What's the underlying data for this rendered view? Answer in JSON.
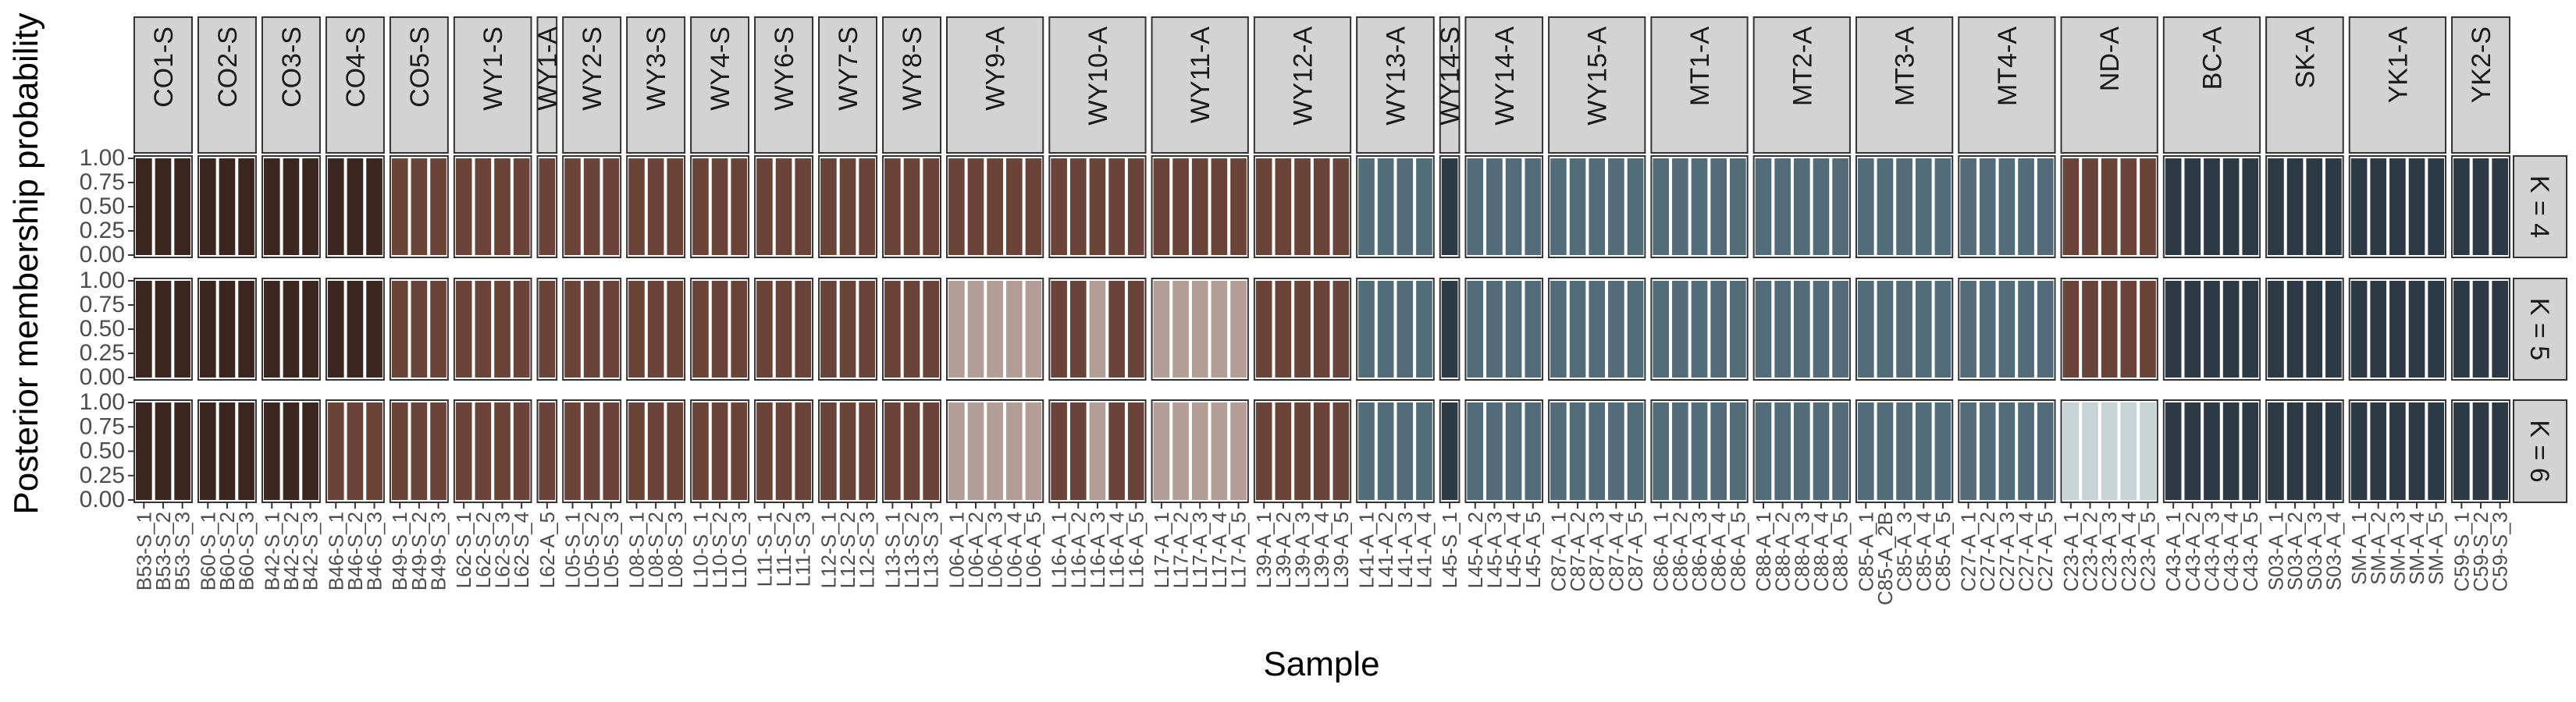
{
  "chart_data": {
    "type": "bar",
    "stacked": true,
    "ylabel": "Posterior membership probability",
    "xlabel": "Sample",
    "ylim": [
      0,
      1
    ],
    "y_ticks": [
      "0.00",
      "0.25",
      "0.50",
      "0.75",
      "1.00"
    ],
    "grid": false,
    "legend": "none",
    "palette": {
      "c1": "#3b2620",
      "c2": "#6a4439",
      "c3": "#b39e95",
      "c4": "#526c7a",
      "c5": "#2b3a44",
      "c6": "#c8d3d6"
    },
    "rows": [
      {
        "label": "K = 4",
        "k": 4
      },
      {
        "label": "K = 5",
        "k": 5
      },
      {
        "label": "K = 6",
        "k": 6
      }
    ],
    "populations": [
      {
        "name": "CO1-S",
        "samples": [
          "B53-S_1",
          "B53-S_2",
          "B53-S_3"
        ],
        "clusters": [
          "c1",
          "c1",
          "c1"
        ]
      },
      {
        "name": "CO2-S",
        "samples": [
          "B60-S_1",
          "B60-S_2",
          "B60-S_3"
        ],
        "clusters": [
          "c1",
          "c1",
          "c1"
        ]
      },
      {
        "name": "CO3-S",
        "samples": [
          "B42-S_1",
          "B42-S_2",
          "B42-S_3"
        ],
        "clusters": [
          "c1",
          "c1",
          "c1"
        ]
      },
      {
        "name": "CO4-S",
        "samples": [
          "B46-S_1",
          "B46-S_2",
          "B46-S_3"
        ],
        "clusters": [
          "c1",
          "c1",
          "c2"
        ]
      },
      {
        "name": "CO5-S",
        "samples": [
          "B49-S_1",
          "B49-S_2",
          "B49-S_3"
        ],
        "clusters": [
          "c2",
          "c2",
          "c2"
        ]
      },
      {
        "name": "WY1-S",
        "samples": [
          "L62-S_1",
          "L62-S_2",
          "L62-S_3",
          "L62-S_4"
        ],
        "clusters": [
          "c2",
          "c2",
          "c2"
        ]
      },
      {
        "name": "WY1-A",
        "samples": [
          "L62-A_5"
        ],
        "clusters": [
          "c2",
          "c2",
          "c2"
        ]
      },
      {
        "name": "WY2-S",
        "samples": [
          "L05-S_1",
          "L05-S_2",
          "L05-S_3"
        ],
        "clusters": [
          "c2",
          "c2",
          "c2"
        ]
      },
      {
        "name": "WY3-S",
        "samples": [
          "L08-S_1",
          "L08-S_2",
          "L08-S_3"
        ],
        "clusters": [
          "c2",
          "c2",
          "c2"
        ]
      },
      {
        "name": "WY4-S",
        "samples": [
          "L10-S_1",
          "L10-S_2",
          "L10-S_3"
        ],
        "clusters": [
          "c2",
          "c2",
          "c2"
        ]
      },
      {
        "name": "WY6-S",
        "samples": [
          "L11-S_1",
          "L11-S_2",
          "L11-S_3"
        ],
        "clusters": [
          "c2",
          "c2",
          "c2"
        ]
      },
      {
        "name": "WY7-S",
        "samples": [
          "L12-S_1",
          "L12-S_2",
          "L12-S_3"
        ],
        "clusters": [
          "c2",
          "c2",
          "c2"
        ]
      },
      {
        "name": "WY8-S",
        "samples": [
          "L13-S_1",
          "L13-S_2",
          "L13-S_3"
        ],
        "clusters": [
          "c2",
          "c2",
          "c2"
        ]
      },
      {
        "name": "WY9-A",
        "samples": [
          "L06-A_1",
          "L06-A_2",
          "L06-A_3",
          "L06-A_4",
          "L06-A_5"
        ],
        "clusters": [
          "c2",
          "c3",
          "c3"
        ]
      },
      {
        "name": "WY10-A",
        "samples": [
          "L16-A_1",
          "L16-A_2",
          "L16-A_3",
          "L16-A_4",
          "L16-A_5"
        ],
        "clusters": [
          "c2",
          "mix",
          "mix"
        ]
      },
      {
        "name": "WY11-A",
        "samples": [
          "L17-A_1",
          "L17-A_2",
          "L17-A_3",
          "L17-A_4",
          "L17-A_5"
        ],
        "clusters": [
          "c2",
          "c3",
          "c3"
        ]
      },
      {
        "name": "WY12-A",
        "samples": [
          "L39-A_1",
          "L39-A_2",
          "L39-A_3",
          "L39-A_4",
          "L39-A_5"
        ],
        "clusters": [
          "c2",
          "c2",
          "c2"
        ]
      },
      {
        "name": "WY13-A",
        "samples": [
          "L41-A_1",
          "L41-A_2",
          "L41-A_3",
          "L41-A_4"
        ],
        "clusters": [
          "c4",
          "c4",
          "c4"
        ]
      },
      {
        "name": "WY14-S",
        "samples": [
          "L45-S_1"
        ],
        "clusters": [
          "c5",
          "c5",
          "c5"
        ]
      },
      {
        "name": "WY14-A",
        "samples": [
          "L45-A_2",
          "L45-A_3",
          "L45-A_4",
          "L45-A_5"
        ],
        "clusters": [
          "c4",
          "c4",
          "c4"
        ]
      },
      {
        "name": "WY15-A",
        "samples": [
          "C87-A_1",
          "C87-A_2",
          "C87-A_3",
          "C87-A_4",
          "C87-A_5"
        ],
        "clusters": [
          "c4",
          "c4",
          "c4"
        ]
      },
      {
        "name": "MT1-A",
        "samples": [
          "C86-A_1",
          "C86-A_2",
          "C86-A_3",
          "C86-A_4",
          "C86-A_5"
        ],
        "clusters": [
          "c4",
          "c4",
          "c4"
        ]
      },
      {
        "name": "MT2-A",
        "samples": [
          "C88-A_1",
          "C88-A_2",
          "C88-A_3",
          "C88-A_4",
          "C88-A_5"
        ],
        "clusters": [
          "c4",
          "c4",
          "c4"
        ]
      },
      {
        "name": "MT3-A",
        "samples": [
          "C85-A_1",
          "C85-A_2B",
          "C85-A_3",
          "C85-A_4",
          "C85-A_5"
        ],
        "clusters": [
          "c4",
          "c4",
          "c4"
        ]
      },
      {
        "name": "MT4-A",
        "samples": [
          "C27-A_1",
          "C27-A_2",
          "C27-A_3",
          "C27-A_4",
          "C27-A_5"
        ],
        "clusters": [
          "c4",
          "c4",
          "c4"
        ]
      },
      {
        "name": "ND-A",
        "samples": [
          "C23-A_1",
          "C23-A_2",
          "C23-A_3",
          "C23-A_4",
          "C23-A_5"
        ],
        "clusters": [
          "c2",
          "c2",
          "c6"
        ]
      },
      {
        "name": "BC-A",
        "samples": [
          "C43-A_1",
          "C43-A_2",
          "C43-A_3",
          "C43-A_4",
          "C43-A_5"
        ],
        "clusters": [
          "c5",
          "c5",
          "c5"
        ]
      },
      {
        "name": "SK-A",
        "samples": [
          "S03-A_1",
          "S03-A_2",
          "S03-A_3",
          "S03-A_4"
        ],
        "clusters": [
          "c5",
          "c5",
          "c5"
        ]
      },
      {
        "name": "YK1-A",
        "samples": [
          "SM-A_1",
          "SM-A_2",
          "SM-A_3",
          "SM-A_4",
          "SM-A_5"
        ],
        "clusters": [
          "c5",
          "c5",
          "c5"
        ]
      },
      {
        "name": "YK2-S",
        "samples": [
          "C59-S_1",
          "C59-S_2",
          "C59-S_3"
        ],
        "clusters": [
          "c5",
          "c5",
          "c5"
        ]
      }
    ],
    "mixed_samples": {
      "WY10-A": {
        "K = 5": [
          "c2",
          "c2",
          "c3",
          "c2",
          "c2"
        ],
        "K = 6": [
          "c2",
          "c2",
          "c3",
          "c2",
          "c2"
        ]
      }
    }
  }
}
